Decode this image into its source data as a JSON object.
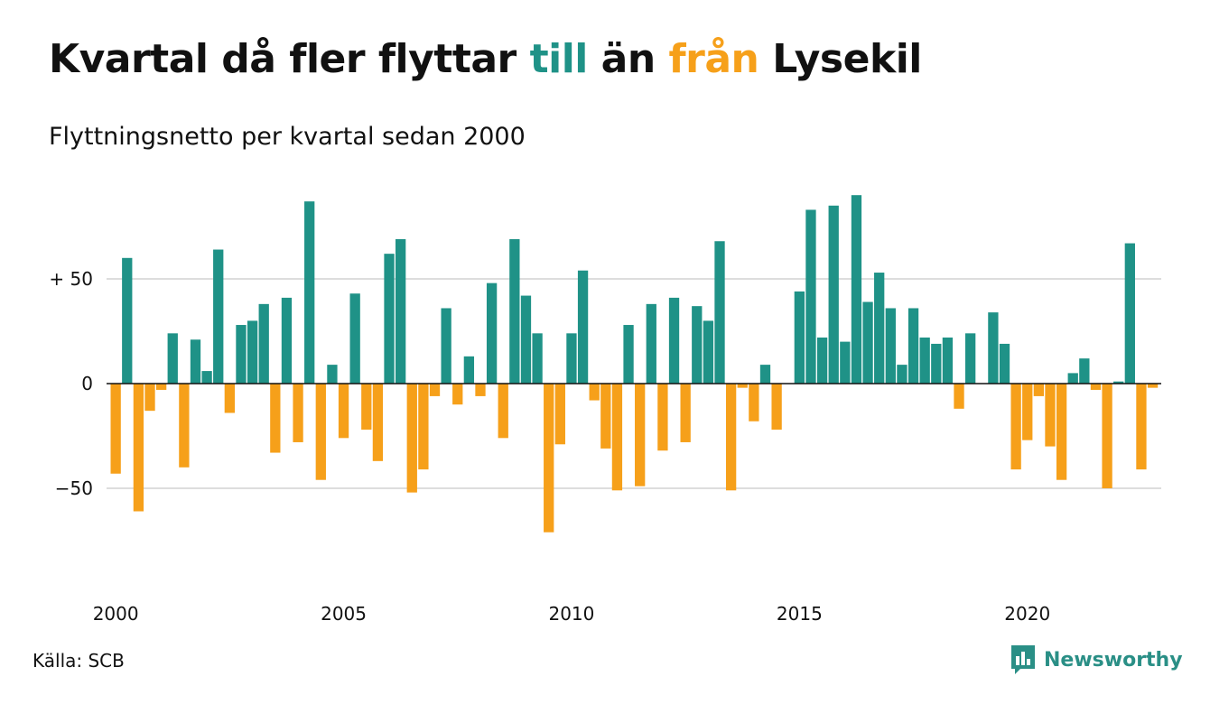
{
  "title": {
    "part1": "Kvartal då fler flyttar ",
    "highlight_in": "till",
    "part2": " än ",
    "highlight_out": "från",
    "part3": " Lysekil"
  },
  "subtitle": "Flyttningsnetto per kvartal sedan 2000",
  "source": "Källa: SCB",
  "brand": {
    "name": "Newsworthy",
    "icon": "newsworthy-logo-icon"
  },
  "colors": {
    "positive": "#1f9287",
    "negative": "#f6a01a",
    "grid": "#dddddd",
    "axis": "#111111"
  },
  "chart_data": {
    "type": "bar",
    "title": "Kvartal då fler flyttar till än från Lysekil",
    "subtitle": "Flyttningsnetto per kvartal sedan 2000",
    "xlabel": "",
    "ylabel": "",
    "ylim": [
      -95,
      95
    ],
    "yticks": [
      50,
      0,
      -50
    ],
    "ytick_labels": [
      "+ 50",
      "0",
      "−50"
    ],
    "xticks": [
      2000,
      2005,
      2010,
      2015,
      2020
    ],
    "grid": true,
    "legend": "none",
    "start": "2000 Q1",
    "values": [
      -43,
      60,
      -61,
      -13,
      -3,
      24,
      -40,
      21,
      6,
      64,
      -14,
      28,
      30,
      38,
      -33,
      41,
      -28,
      87,
      -46,
      9,
      -26,
      43,
      -22,
      -37,
      62,
      69,
      -52,
      -41,
      -6,
      36,
      -10,
      13,
      -6,
      48,
      -26,
      69,
      42,
      24,
      -71,
      -29,
      24,
      54,
      -8,
      -31,
      -51,
      28,
      -49,
      38,
      -32,
      41,
      -28,
      37,
      30,
      68,
      -51,
      -2,
      -18,
      9,
      -22,
      0,
      44,
      83,
      22,
      85,
      20,
      90,
      39,
      53,
      36,
      9,
      36,
      22,
      19,
      22,
      -12,
      24,
      0,
      34,
      19,
      -41,
      -27,
      -6,
      -30,
      -46,
      5,
      12,
      -3,
      -50,
      1,
      67,
      -41,
      -2
    ]
  }
}
